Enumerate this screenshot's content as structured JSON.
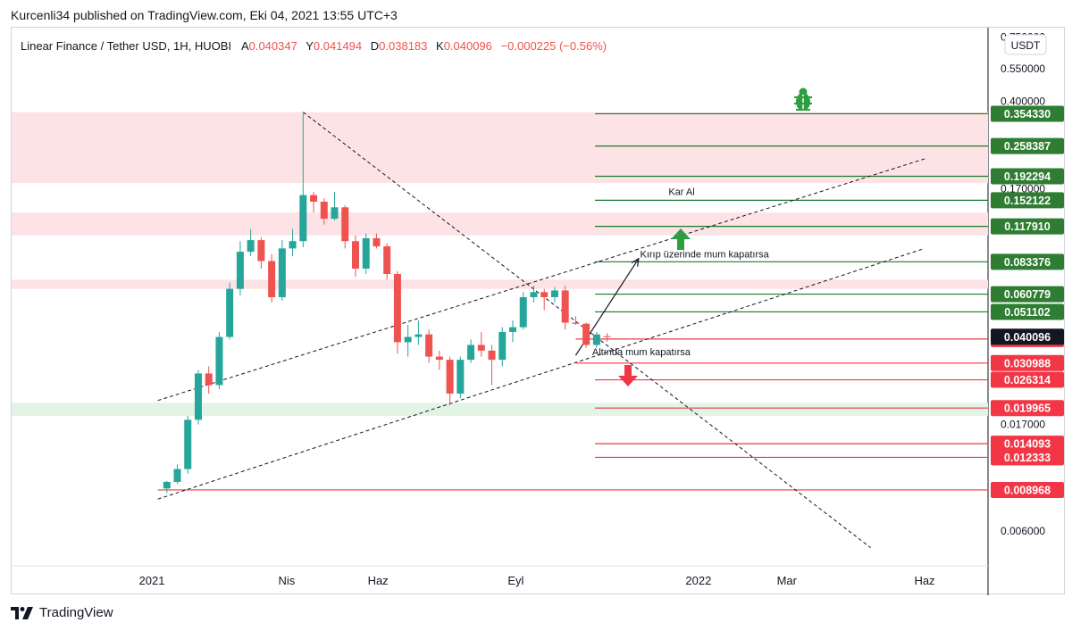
{
  "header": {
    "published_line": "Kurcenli34 published on TradingView.com, Eki 04, 2021 13:55 UTC+3"
  },
  "legend": {
    "symbol": "Linear Finance / Tether USD, 1H, HUOBI",
    "open_label": "A",
    "open_value": "0.040347",
    "high_label": "Y",
    "high_value": "0.041494",
    "low_label": "D",
    "low_value": "0.038183",
    "close_label": "K",
    "close_value": "0.040096",
    "change": "−0.000225 (−0.56%)"
  },
  "currency_button": "USDT",
  "footer": {
    "brand": "TradingView"
  },
  "colors": {
    "up": "#26a69a",
    "down": "#ef5350",
    "resistance_zone": "#fde3e5",
    "support_zone": "#e3f3e6",
    "green_level": "#1b7a2a",
    "red_level": "#f23645",
    "label_green": "#2e7d32",
    "label_red": "#f23645",
    "current_price": "#131722"
  },
  "chart_data": {
    "type": "candlestick",
    "y_scale": "log",
    "ylim": [
      0.0045,
      0.78
    ],
    "x_tick_labels": [
      "2021",
      "Nis",
      "Haz",
      "Eyl",
      "2022",
      "Mar",
      "Haz"
    ],
    "x_tick_dates": [
      "2021-01-01",
      "2021-04-01",
      "2021-06-01",
      "2021-09-01",
      "2022-01-01",
      "2022-03-01",
      "2022-06-01"
    ],
    "y_tick_labels": [
      "0.750000",
      "0.550000",
      "0.400000",
      "0.170000",
      "0.017000",
      "0.006000"
    ],
    "y_tick_values": [
      0.75,
      0.55,
      0.4,
      0.17,
      0.017,
      0.006
    ],
    "candles": [
      {
        "date": "2021-01-11",
        "o": 0.0091,
        "h": 0.0098,
        "l": 0.0087,
        "c": 0.0097
      },
      {
        "date": "2021-01-18",
        "o": 0.0097,
        "h": 0.0115,
        "l": 0.0095,
        "c": 0.011
      },
      {
        "date": "2021-01-25",
        "o": 0.011,
        "h": 0.0185,
        "l": 0.0105,
        "c": 0.0178
      },
      {
        "date": "2021-02-01",
        "o": 0.0178,
        "h": 0.029,
        "l": 0.017,
        "c": 0.028
      },
      {
        "date": "2021-02-08",
        "o": 0.028,
        "h": 0.03,
        "l": 0.023,
        "c": 0.025
      },
      {
        "date": "2021-02-15",
        "o": 0.025,
        "h": 0.042,
        "l": 0.024,
        "c": 0.04
      },
      {
        "date": "2021-02-22",
        "o": 0.04,
        "h": 0.068,
        "l": 0.039,
        "c": 0.064
      },
      {
        "date": "2021-03-01",
        "o": 0.064,
        "h": 0.102,
        "l": 0.06,
        "c": 0.092
      },
      {
        "date": "2021-03-08",
        "o": 0.092,
        "h": 0.115,
        "l": 0.088,
        "c": 0.103
      },
      {
        "date": "2021-03-15",
        "o": 0.103,
        "h": 0.106,
        "l": 0.078,
        "c": 0.084
      },
      {
        "date": "2021-03-22",
        "o": 0.084,
        "h": 0.09,
        "l": 0.056,
        "c": 0.059
      },
      {
        "date": "2021-03-29",
        "o": 0.059,
        "h": 0.103,
        "l": 0.057,
        "c": 0.095
      },
      {
        "date": "2021-04-05",
        "o": 0.095,
        "h": 0.115,
        "l": 0.088,
        "c": 0.102
      },
      {
        "date": "2021-04-12",
        "o": 0.102,
        "h": 0.36,
        "l": 0.096,
        "c": 0.16
      },
      {
        "date": "2021-04-19",
        "o": 0.16,
        "h": 0.165,
        "l": 0.135,
        "c": 0.15
      },
      {
        "date": "2021-04-26",
        "o": 0.15,
        "h": 0.155,
        "l": 0.12,
        "c": 0.127
      },
      {
        "date": "2021-05-03",
        "o": 0.127,
        "h": 0.165,
        "l": 0.125,
        "c": 0.142
      },
      {
        "date": "2021-05-10",
        "o": 0.142,
        "h": 0.145,
        "l": 0.095,
        "c": 0.102
      },
      {
        "date": "2021-05-17",
        "o": 0.102,
        "h": 0.108,
        "l": 0.072,
        "c": 0.078
      },
      {
        "date": "2021-05-24",
        "o": 0.078,
        "h": 0.11,
        "l": 0.074,
        "c": 0.105
      },
      {
        "date": "2021-05-31",
        "o": 0.105,
        "h": 0.11,
        "l": 0.095,
        "c": 0.097
      },
      {
        "date": "2021-06-07",
        "o": 0.097,
        "h": 0.1,
        "l": 0.07,
        "c": 0.074
      },
      {
        "date": "2021-06-14",
        "o": 0.074,
        "h": 0.076,
        "l": 0.034,
        "c": 0.038
      },
      {
        "date": "2021-06-21",
        "o": 0.038,
        "h": 0.045,
        "l": 0.033,
        "c": 0.04
      },
      {
        "date": "2021-06-28",
        "o": 0.04,
        "h": 0.047,
        "l": 0.037,
        "c": 0.041
      },
      {
        "date": "2021-07-05",
        "o": 0.041,
        "h": 0.043,
        "l": 0.031,
        "c": 0.033
      },
      {
        "date": "2021-07-12",
        "o": 0.033,
        "h": 0.035,
        "l": 0.029,
        "c": 0.032
      },
      {
        "date": "2021-07-19",
        "o": 0.032,
        "h": 0.033,
        "l": 0.0205,
        "c": 0.023
      },
      {
        "date": "2021-07-26",
        "o": 0.023,
        "h": 0.033,
        "l": 0.022,
        "c": 0.032
      },
      {
        "date": "2021-08-02",
        "o": 0.032,
        "h": 0.039,
        "l": 0.031,
        "c": 0.037
      },
      {
        "date": "2021-08-09",
        "o": 0.037,
        "h": 0.042,
        "l": 0.033,
        "c": 0.035
      },
      {
        "date": "2021-08-16",
        "o": 0.035,
        "h": 0.037,
        "l": 0.025,
        "c": 0.032
      },
      {
        "date": "2021-08-23",
        "o": 0.032,
        "h": 0.044,
        "l": 0.03,
        "c": 0.042
      },
      {
        "date": "2021-08-30",
        "o": 0.042,
        "h": 0.047,
        "l": 0.038,
        "c": 0.044
      },
      {
        "date": "2021-09-06",
        "o": 0.044,
        "h": 0.062,
        "l": 0.043,
        "c": 0.059
      },
      {
        "date": "2021-09-13",
        "o": 0.059,
        "h": 0.066,
        "l": 0.056,
        "c": 0.062
      },
      {
        "date": "2021-09-20",
        "o": 0.062,
        "h": 0.064,
        "l": 0.052,
        "c": 0.059
      },
      {
        "date": "2021-09-27",
        "o": 0.059,
        "h": 0.065,
        "l": 0.056,
        "c": 0.063
      },
      {
        "date": "2021-10-04",
        "o": 0.063,
        "h": 0.066,
        "l": 0.043,
        "c": 0.046
      },
      {
        "date": "2021-10-11",
        "o": 0.046,
        "h": 0.049,
        "l": 0.045,
        "c": 0.0455
      },
      {
        "date": "2021-10-18",
        "o": 0.0455,
        "h": 0.046,
        "l": 0.036,
        "c": 0.037
      },
      {
        "date": "2021-10-25",
        "o": 0.037,
        "h": 0.042,
        "l": 0.036,
        "c": 0.041
      },
      {
        "date": "2021-11-01",
        "o": 0.0403,
        "h": 0.0415,
        "l": 0.0382,
        "c": 0.0401
      }
    ],
    "current_price": 0.040096,
    "current_price_label": "0.040096",
    "green_levels": [
      {
        "value": 0.35433,
        "label": "0.354330"
      },
      {
        "value": 0.258387,
        "label": "0.258387"
      },
      {
        "value": 0.192294,
        "label": "0.192294"
      },
      {
        "value": 0.152122,
        "label": "0.152122"
      },
      {
        "value": 0.11791,
        "label": "0.117910"
      },
      {
        "value": 0.083376,
        "label": "0.083376"
      },
      {
        "value": 0.060779,
        "label": "0.060779"
      },
      {
        "value": 0.051102,
        "label": "0.051102"
      }
    ],
    "red_levels": [
      {
        "value": 0.039193,
        "label": "0.039193"
      },
      {
        "value": 0.030988,
        "label": "0.030988"
      },
      {
        "value": 0.026314,
        "label": "0.026314"
      },
      {
        "value": 0.019965,
        "label": "0.019965"
      },
      {
        "value": 0.014093,
        "label": "0.014093"
      },
      {
        "value": 0.012333,
        "label": "0.012333"
      },
      {
        "value": 0.008968,
        "label": "0.008968"
      }
    ],
    "resistance_zones": [
      {
        "from": 0.18,
        "to": 0.36
      },
      {
        "from": 0.108,
        "to": 0.135
      },
      {
        "from": 0.064,
        "to": 0.07
      }
    ],
    "support_zones": [
      {
        "from": 0.0185,
        "to": 0.021
      }
    ],
    "trend_lines": [
      {
        "date1": "2021-01-05",
        "v1": 0.0215,
        "date2": "2022-06-01",
        "v2": 0.228
      },
      {
        "date1": "2021-01-05",
        "v1": 0.0082,
        "date2": "2022-06-01",
        "v2": 0.095
      },
      {
        "date1": "2021-04-12",
        "v1": 0.36,
        "date2": "2022-04-26",
        "v2": 0.0051
      }
    ],
    "projection_arrow": {
      "date1": "2021-10-11",
      "v1": 0.0334,
      "date2": "2021-11-22",
      "v2": 0.086
    },
    "annotations": [
      {
        "text": "Kar Al",
        "date": "2021-12-12",
        "value": 0.16
      },
      {
        "text": "Kırıp üzerinde mum kapatırsa",
        "date": "2021-11-23",
        "value": 0.087
      },
      {
        "text": "Altında mum kapatırsa",
        "date": "2021-10-22",
        "value": 0.0335
      }
    ]
  }
}
